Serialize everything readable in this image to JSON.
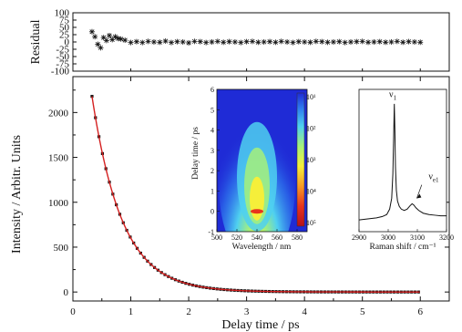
{
  "chart_data": [
    {
      "id": "residual",
      "type": "scatter",
      "ylabel": "Residual",
      "xlim": [
        0,
        6.5
      ],
      "ylim": [
        -100,
        100
      ],
      "xticks": [
        0,
        1,
        2,
        3,
        4,
        5,
        6
      ],
      "yticks": [
        100,
        75,
        50,
        25,
        0,
        -25,
        -50,
        -75,
        -100
      ],
      "ytick_labels": [
        "100",
        "75",
        "50",
        "25",
        "0",
        "-25",
        "-50",
        "-75",
        "-100"
      ],
      "marker": "asterisk",
      "x": [
        0.33,
        0.38,
        0.43,
        0.48,
        0.53,
        0.58,
        0.63,
        0.68,
        0.73,
        0.78,
        0.83,
        0.9,
        1.0,
        1.1,
        1.2,
        1.3,
        1.4,
        1.5,
        1.6,
        1.7,
        1.8,
        1.9,
        2.0,
        2.1,
        2.2,
        2.3,
        2.4,
        2.5,
        2.6,
        2.7,
        2.8,
        2.9,
        3.0,
        3.1,
        3.2,
        3.3,
        3.4,
        3.5,
        3.6,
        3.7,
        3.8,
        3.9,
        4.0,
        4.1,
        4.2,
        4.3,
        4.4,
        4.5,
        4.6,
        4.7,
        4.8,
        4.9,
        5.0,
        5.1,
        5.2,
        5.3,
        5.4,
        5.5,
        5.6,
        5.7,
        5.8,
        5.9,
        6.0
      ],
      "y": [
        35,
        18,
        -8,
        -20,
        15,
        5,
        22,
        8,
        18,
        12,
        10,
        6,
        -2,
        1,
        -2,
        2,
        0,
        -1,
        3,
        -2,
        1,
        0,
        -3,
        2,
        1,
        -2,
        0,
        2,
        -1,
        1,
        0,
        -2,
        1,
        2,
        -1,
        0,
        1,
        -1,
        2,
        0,
        -2,
        1,
        0,
        -1,
        2,
        1,
        -1,
        0,
        1,
        -2,
        0,
        1,
        2,
        -1,
        0,
        1,
        -1,
        0,
        2,
        -1,
        1,
        0,
        -1
      ]
    },
    {
      "id": "decay",
      "type": "scatter",
      "xlabel": "Delay time / ps",
      "ylabel": "Intensity / Arbitr. Units",
      "xlim": [
        0,
        6.5
      ],
      "ylim": [
        -100,
        2400
      ],
      "xticks": [
        0,
        1,
        2,
        3,
        4,
        5,
        6
      ],
      "yticks": [
        0,
        500,
        1000,
        1500,
        2000
      ],
      "data_color": "#111111",
      "fit_color": "#d42020",
      "fit_model": {
        "amplitude": 2180,
        "x0": 0.33,
        "tau": 0.52
      },
      "x_start": 0.33,
      "x_end": 6.0,
      "x_step": 0.06
    },
    {
      "id": "inset-2d-map",
      "type": "heatmap",
      "xlabel": "Wavelength / nm",
      "ylabel": "Delay time / ps",
      "xlim": [
        500,
        580
      ],
      "ylim": [
        -1,
        6
      ],
      "xticks": [
        500,
        520,
        540,
        560,
        580
      ],
      "yticks": [
        -1,
        0,
        1,
        2,
        3,
        4,
        5,
        6
      ],
      "colorbar_labels": [
        "10¹",
        "10²",
        "10³",
        "10⁴",
        "10⁵"
      ],
      "colormap": [
        "#1f2bd6",
        "#2f7ff0",
        "#4fd0f0",
        "#a6f07a",
        "#f5ef3a",
        "#f79a26",
        "#e8341c",
        "#b5121b"
      ],
      "peak_center_nm": 540,
      "peak_time_ps": 0
    },
    {
      "id": "inset-raman",
      "type": "line",
      "xlabel": "Raman shift / cm⁻¹",
      "xlim": [
        2900,
        3200
      ],
      "xticks": [
        2900,
        3000,
        3100,
        3200
      ],
      "ylim": [
        0,
        1.0
      ],
      "x": [
        2900,
        2920,
        2940,
        2960,
        2980,
        2995,
        3005,
        3012,
        3016,
        3019,
        3021,
        3023,
        3025,
        3028,
        3032,
        3038,
        3045,
        3055,
        3065,
        3075,
        3082,
        3088,
        3095,
        3105,
        3120,
        3140,
        3160,
        3180,
        3200
      ],
      "y": [
        0.06,
        0.065,
        0.07,
        0.075,
        0.085,
        0.1,
        0.14,
        0.22,
        0.4,
        0.7,
        0.92,
        0.72,
        0.45,
        0.28,
        0.2,
        0.16,
        0.14,
        0.13,
        0.14,
        0.165,
        0.18,
        0.17,
        0.15,
        0.13,
        0.11,
        0.1,
        0.095,
        0.09,
        0.09
      ],
      "annotations": [
        {
          "text": "ν",
          "sub": "1",
          "x": 3022,
          "y": 0.97
        },
        {
          "text": "ν",
          "sub": "e1",
          "x": 3120,
          "y": 0.36
        }
      ]
    }
  ]
}
